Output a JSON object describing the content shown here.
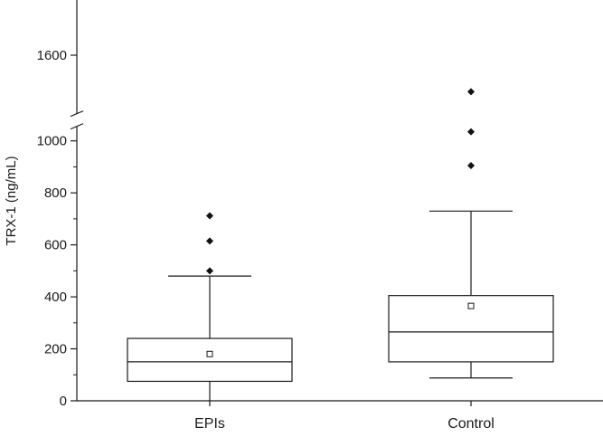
{
  "chart_data": {
    "type": "box",
    "ylabel": "TRX-1 (ng/mL)",
    "xlabel": "",
    "title": "",
    "y_axis_break": {
      "below": 1070,
      "above": 1520
    },
    "ylim": [
      0,
      1800
    ],
    "y_ticks": [
      {
        "value": 0,
        "label": "0"
      },
      {
        "value": 200,
        "label": "200"
      },
      {
        "value": 400,
        "label": "400"
      },
      {
        "value": 600,
        "label": "600"
      },
      {
        "value": 800,
        "label": "800"
      },
      {
        "value": 1000,
        "label": "1000"
      },
      {
        "value": 1600,
        "label": "1600"
      }
    ],
    "y_minor_ticks": [
      100,
      300,
      500,
      700,
      900
    ],
    "categories": [
      "EPIs",
      "Control"
    ],
    "boxes": [
      {
        "name": "EPIs",
        "whisker_low": 0,
        "q1": 75,
        "median": 150,
        "q3": 240,
        "whisker_high": 480,
        "mean": 180,
        "outliers": [
          500,
          615,
          712
        ]
      },
      {
        "name": "Control",
        "whisker_low": 88,
        "q1": 150,
        "median": 265,
        "q3": 405,
        "whisker_high": 730,
        "mean": 365,
        "outliers": [
          905,
          1035,
          1550
        ]
      }
    ]
  }
}
